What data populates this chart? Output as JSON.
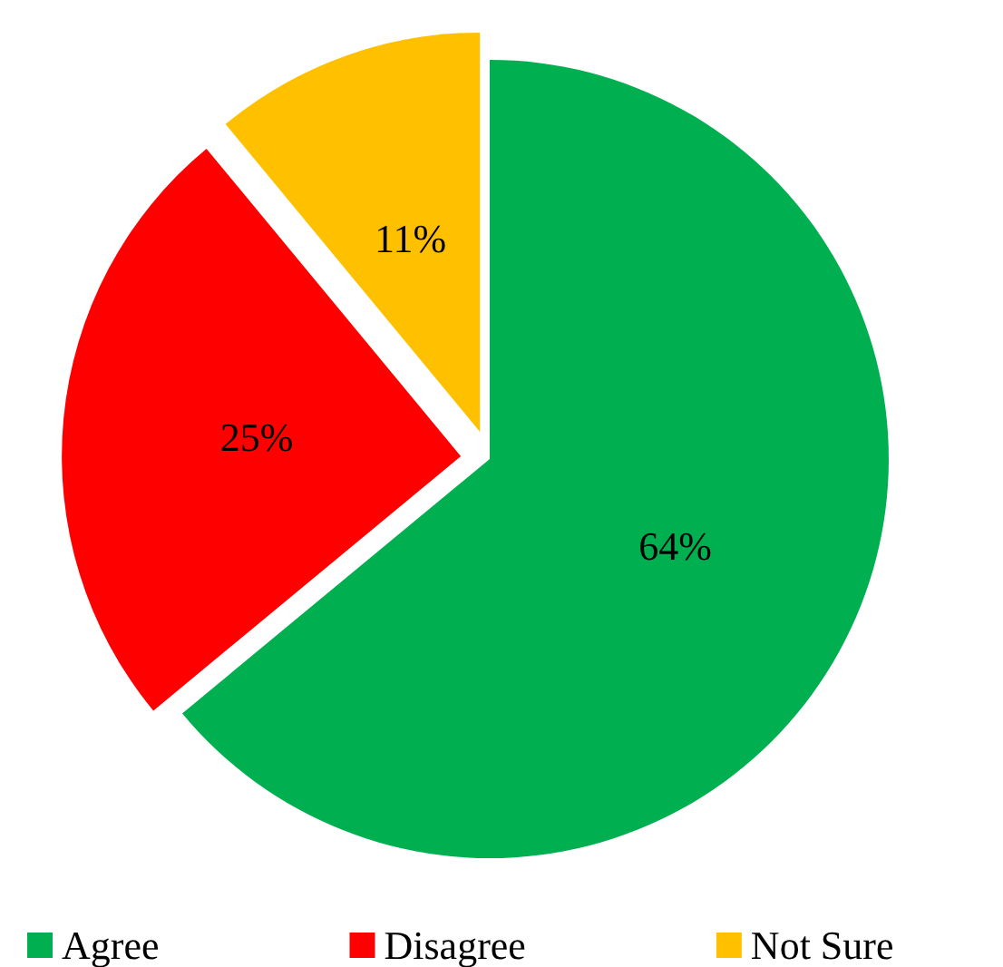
{
  "chart_data": {
    "type": "pie",
    "categories": [
      "Agree",
      "Disagree",
      "Not Sure"
    ],
    "values": [
      64,
      25,
      11
    ],
    "colors": [
      "#00b050",
      "#ff0000",
      "#ffc000"
    ],
    "value_labels": [
      "64%",
      "25%",
      "11%"
    ],
    "legend": "bottom"
  }
}
